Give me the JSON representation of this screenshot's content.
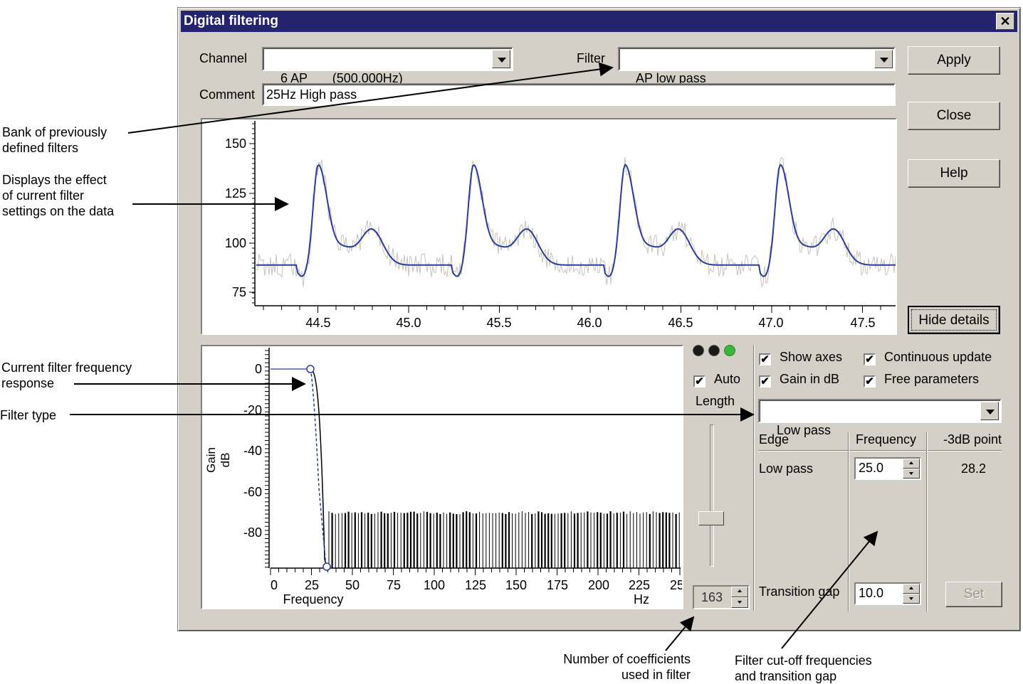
{
  "annotations": {
    "bank": "Bank of previously\ndefined filters",
    "bank_l1": "Bank of previously",
    "bank_l2": "defined filters",
    "displays_l1": "Displays the effect",
    "displays_l2": "of current filter",
    "displays_l3": "settings on the data",
    "response_l1": "Current filter frequency",
    "response_l2": "response",
    "filter_type": "Filter type",
    "coeff_l1": "Number of coefficients",
    "coeff_l2": "used in filter",
    "cutoff_l1": "Filter cut-off frequencies",
    "cutoff_l2": "and transition gap"
  },
  "dialog": {
    "title": "Digital filtering",
    "close_glyph": "✕"
  },
  "form": {
    "channel_label": "Channel",
    "channel_value": "6 AP       (500.000Hz)",
    "filter_label": "Filter",
    "filter_value": "AP low pass",
    "comment_label": "Comment",
    "comment_value": "25Hz High pass"
  },
  "buttons": {
    "apply": "Apply",
    "close": "Close",
    "help": "Help",
    "hide_details": "Hide details",
    "set": "Set"
  },
  "data_plot": {
    "y_ticks": [
      "150",
      "125",
      "100",
      "75"
    ],
    "x_ticks": [
      "44.5",
      "45.0",
      "45.5",
      "46.0",
      "46.5",
      "47.0",
      "47.5"
    ],
    "raw_color": "#c8c4bc",
    "filtered_color": "#2b3c9a"
  },
  "response_plot": {
    "y_ticks": [
      "0",
      "-20",
      "-40",
      "-60",
      "-80"
    ],
    "x_ticks": [
      "0",
      "25",
      "50",
      "75",
      "100",
      "125",
      "150",
      "175",
      "200",
      "225",
      "25"
    ],
    "ylabel_1": "Gain",
    "ylabel_2": "dB",
    "xlabel": "Frequency",
    "xunit": "Hz"
  },
  "length": {
    "auto_label": "Auto",
    "auto_checked": "✔",
    "length_label": "Length",
    "value": "163",
    "indicator_colors": [
      "#1a1a1a",
      "#1a1a1a",
      "#3cb43c"
    ]
  },
  "options": {
    "show_axes": "Show axes",
    "continuous_update": "Continuous update",
    "gain_in_db": "Gain in dB",
    "free_parameters": "Free parameters",
    "check": "✔"
  },
  "filter_type": {
    "value": "Low pass"
  },
  "edge_table": {
    "headers": [
      "Edge",
      "Frequency",
      "-3dB point"
    ],
    "rows": [
      {
        "edge": "Low pass",
        "frequency": "25.0",
        "minus3db": "28.2"
      }
    ],
    "transition_label": "Transition gap",
    "transition_value": "10.0"
  }
}
